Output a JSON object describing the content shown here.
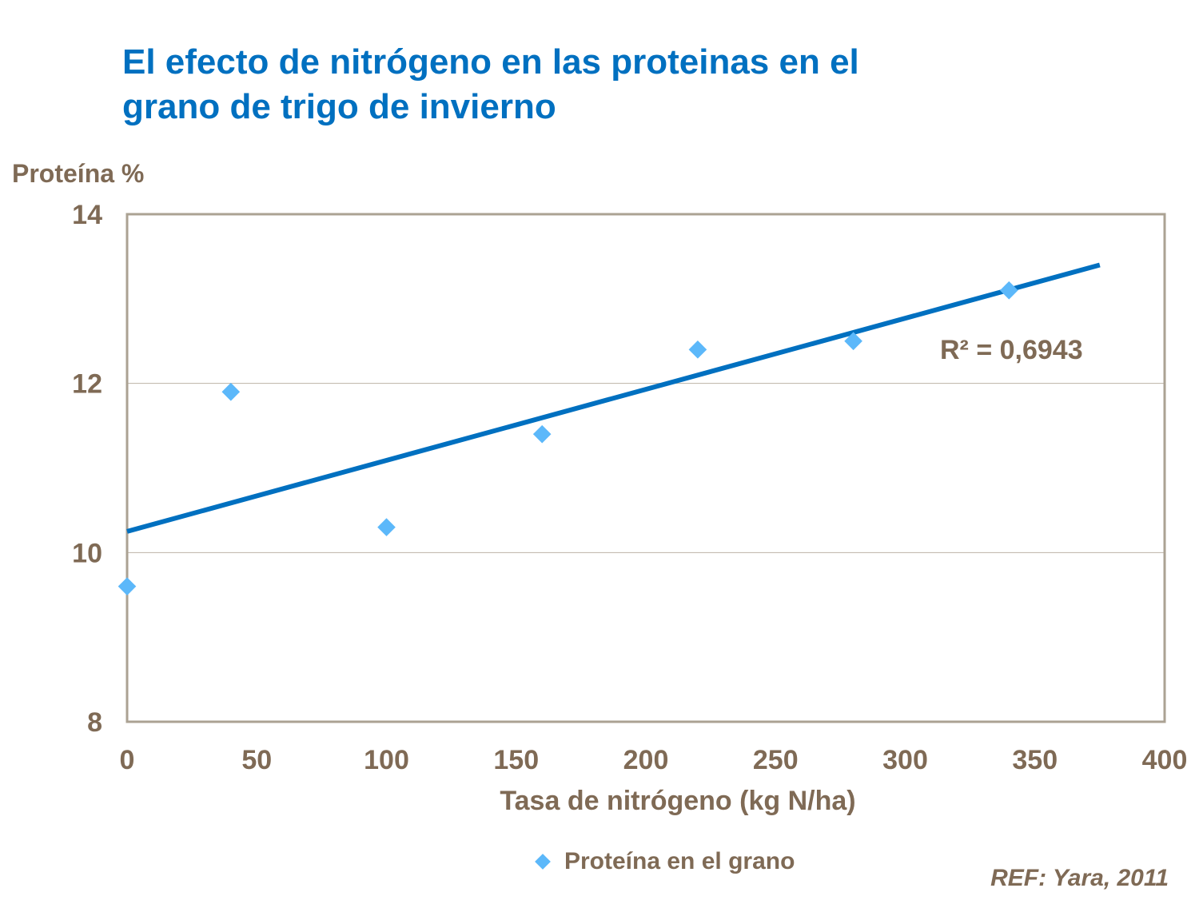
{
  "colors": {
    "title": "#0070C0",
    "text": "#7F6A55",
    "marker": "#5CB8FA",
    "trendline": "#0070C0",
    "frame": "#ABA293",
    "grid": "#BDB3A6"
  },
  "chart_data": {
    "type": "scatter",
    "title": [
      "El efecto de nitrógeno en las proteinas en el",
      "grano de trigo de invierno"
    ],
    "xlabel": "Tasa de nitrógeno (kg N/ha)",
    "ylabel": "Proteína %",
    "xlim": [
      0,
      400
    ],
    "ylim": [
      8,
      14
    ],
    "xticks": [
      0,
      50,
      100,
      150,
      200,
      250,
      300,
      350,
      400
    ],
    "yticks": [
      8,
      10,
      12,
      14
    ],
    "grid": "horizontal",
    "legend_position": "bottom",
    "series": [
      {
        "name": "Proteína  en el grano",
        "marker": "diamond",
        "x": [
          0,
          40,
          100,
          160,
          220,
          280,
          340
        ],
        "y": [
          9.6,
          11.9,
          10.3,
          11.4,
          12.4,
          12.5,
          13.1
        ]
      }
    ],
    "trendline": {
      "type": "linear",
      "x": [
        0,
        375
      ],
      "y": [
        10.25,
        13.4
      ],
      "r2_label": "R² = 0,6943"
    },
    "reference": "REF: Yara, 2011"
  }
}
